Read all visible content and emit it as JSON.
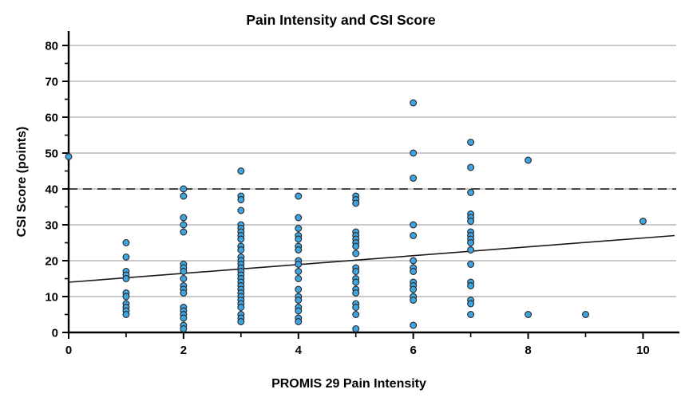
{
  "chart_data": {
    "type": "scatter",
    "title": "Pain Intensity and CSI Score",
    "xlabel": "PROMIS 29 Pain Intensity",
    "ylabel": "CSI Score (points)",
    "xlim": [
      0,
      10.55
    ],
    "ylim": [
      0,
      84
    ],
    "x_major_ticks": [
      0,
      2,
      4,
      6,
      8,
      10
    ],
    "x_minor_ticks": [
      1,
      3,
      5,
      7,
      9
    ],
    "y_major_ticks": [
      0,
      10,
      20,
      30,
      40,
      50,
      60,
      70,
      80
    ],
    "y_minor_ticks": [
      5,
      15,
      25,
      35,
      45,
      55,
      65,
      75
    ],
    "grid": "horizontal-major",
    "legend": "none",
    "reference_line": {
      "y": 40,
      "style": "dashed",
      "color": "#474747"
    },
    "trend_line": {
      "x1": 0,
      "y1": 14,
      "x2": 10.55,
      "y2": 27,
      "color": "#1a1a1a"
    },
    "marker_color": "#3FA5E2",
    "marker_edge_color": "#262626",
    "grid_color": "#ababab",
    "axis_color": "#000000",
    "groups": [
      {
        "x": 0,
        "ys": [
          49
        ]
      },
      {
        "x": 1,
        "ys": [
          25,
          21,
          17,
          16,
          15,
          11,
          10,
          8,
          7,
          6,
          5
        ]
      },
      {
        "x": 2,
        "ys": [
          40,
          38,
          32,
          30,
          28,
          19,
          18,
          17,
          15,
          13,
          12,
          11,
          7,
          6,
          5,
          4,
          2,
          1
        ]
      },
      {
        "x": 3,
        "ys": [
          45,
          38,
          37,
          34,
          30,
          29,
          28,
          27,
          26,
          24,
          23,
          21,
          20,
          19,
          18,
          17,
          16,
          15,
          14,
          13,
          12,
          11,
          10,
          9,
          8,
          7,
          5,
          4,
          3
        ]
      },
      {
        "x": 4,
        "ys": [
          38,
          32,
          29,
          27,
          26,
          24,
          23,
          20,
          19,
          17,
          15,
          12,
          10,
          9,
          7,
          6,
          4,
          3
        ]
      },
      {
        "x": 5,
        "ys": [
          38,
          37,
          36,
          28,
          27,
          26,
          25,
          24,
          22,
          18,
          17,
          15,
          14,
          12,
          11,
          8,
          7,
          5,
          1
        ]
      },
      {
        "x": 6,
        "ys": [
          64,
          50,
          43,
          30,
          27,
          20,
          18,
          17,
          14,
          13,
          12,
          10,
          9,
          2
        ]
      },
      {
        "x": 7,
        "ys": [
          53,
          46,
          39,
          33,
          32,
          31,
          28,
          27,
          26,
          25,
          23,
          19,
          14,
          13,
          9,
          8,
          5
        ]
      },
      {
        "x": 8,
        "ys": [
          48,
          5
        ]
      },
      {
        "x": 9,
        "ys": [
          5
        ]
      },
      {
        "x": 10,
        "ys": [
          31
        ]
      }
    ]
  }
}
